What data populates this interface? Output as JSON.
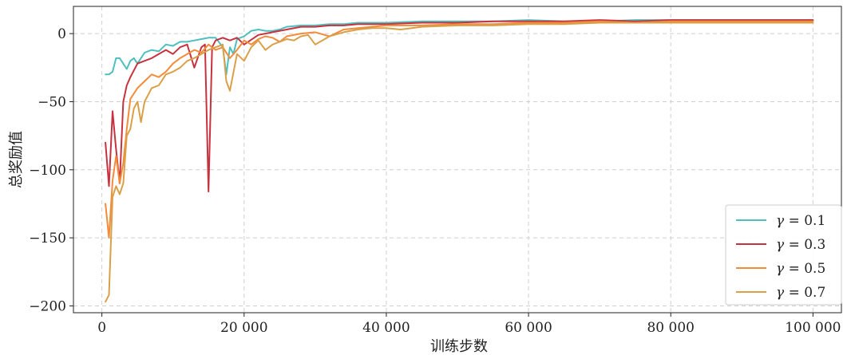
{
  "chart_data": {
    "type": "line",
    "title": "",
    "xlabel": "训练步数",
    "ylabel": "总奖励值",
    "xlim": [
      -4000,
      104000
    ],
    "ylim": [
      -205,
      20
    ],
    "xticks": [
      0,
      20000,
      40000,
      60000,
      80000,
      100000
    ],
    "xtick_labels": [
      "0",
      "20 000",
      "40 000",
      "60 000",
      "80 000",
      "100 000"
    ],
    "yticks": [
      0,
      -50,
      -100,
      -150,
      -200
    ],
    "ytick_labels": [
      "0",
      "−50",
      "−100",
      "−150",
      "−200"
    ],
    "grid": true,
    "legend_position": "bottom-right",
    "series": [
      {
        "name": "γ = 0.1",
        "legend_prefix": "γ",
        "legend_value": "0.1",
        "color": "#4dbfbf",
        "x": [
          500,
          1000,
          1500,
          2000,
          2500,
          3000,
          3500,
          4000,
          4500,
          5000,
          6000,
          7000,
          8000,
          9000,
          10000,
          11000,
          12000,
          13000,
          14000,
          15000,
          16000,
          17000,
          17500,
          18000,
          18500,
          19000,
          20000,
          21000,
          22000,
          23000,
          24000,
          25000,
          26000,
          28000,
          30000,
          32000,
          34000,
          36000,
          40000,
          45000,
          50000,
          55000,
          60000,
          65000,
          70000,
          75000,
          80000,
          85000,
          90000,
          95000,
          100000
        ],
        "y": [
          -30,
          -30,
          -28,
          -18,
          -18,
          -22,
          -26,
          -20,
          -18,
          -22,
          -14,
          -12,
          -13,
          -8,
          -9,
          -6,
          -6,
          -5,
          -4,
          -3,
          -3,
          -10,
          -30,
          -10,
          -15,
          -4,
          -2,
          2,
          3,
          2,
          2,
          3,
          5,
          6,
          6,
          7,
          7,
          8,
          8,
          9,
          9,
          9,
          10,
          9,
          9,
          10,
          10,
          10,
          10,
          10,
          10
        ]
      },
      {
        "name": "γ = 0.3",
        "legend_prefix": "γ",
        "legend_value": "0.3",
        "color": "#c8323f",
        "x": [
          500,
          1000,
          1500,
          2000,
          2500,
          3000,
          3500,
          4000,
          5000,
          6000,
          7000,
          8000,
          9000,
          10000,
          11000,
          12000,
          13000,
          14000,
          14500,
          15000,
          15500,
          16000,
          17000,
          18000,
          19000,
          20000,
          22000,
          24000,
          26000,
          28000,
          30000,
          32000,
          34000,
          36000,
          40000,
          45000,
          50000,
          55000,
          60000,
          65000,
          70000,
          75000,
          80000,
          85000,
          90000,
          95000,
          100000
        ],
        "y": [
          -80,
          -112,
          -57,
          -85,
          -110,
          -50,
          -38,
          -32,
          -22,
          -20,
          -18,
          -15,
          -12,
          -15,
          -10,
          -8,
          -25,
          -10,
          -8,
          -116,
          -10,
          -5,
          -3,
          -5,
          -3,
          -8,
          -1,
          1,
          3,
          5,
          5,
          6,
          6,
          7,
          7,
          8,
          8,
          9,
          9,
          9,
          10,
          9,
          10,
          10,
          10,
          10,
          10
        ]
      },
      {
        "name": "γ = 0.5",
        "legend_prefix": "γ",
        "legend_value": "0.5",
        "color": "#f28c3a",
        "x": [
          500,
          1000,
          1500,
          2000,
          2500,
          3000,
          3500,
          4000,
          5000,
          6000,
          7000,
          8000,
          9000,
          10000,
          11000,
          12000,
          13000,
          14000,
          15000,
          16000,
          17000,
          18000,
          19000,
          20000,
          21000,
          22000,
          23000,
          24000,
          25000,
          26000,
          28000,
          30000,
          32000,
          34000,
          36000,
          38000,
          40000,
          45000,
          50000,
          55000,
          60000,
          65000,
          70000,
          75000,
          80000,
          85000,
          90000,
          95000,
          100000
        ],
        "y": [
          -125,
          -150,
          -108,
          -90,
          -110,
          -95,
          -70,
          -48,
          -40,
          -35,
          -30,
          -32,
          -28,
          -22,
          -18,
          -15,
          -12,
          -14,
          -8,
          -12,
          -10,
          -18,
          -12,
          -5,
          -8,
          -4,
          -2,
          -3,
          -6,
          -2,
          0,
          1,
          -2,
          3,
          4,
          5,
          6,
          6,
          7,
          7,
          8,
          8,
          9,
          8,
          9,
          9,
          9,
          9,
          9
        ]
      },
      {
        "name": "γ = 0.7",
        "legend_prefix": "γ",
        "legend_value": "0.7",
        "color": "#d9a048",
        "x": [
          500,
          1000,
          1500,
          2000,
          2500,
          3000,
          3500,
          4000,
          4500,
          5000,
          5500,
          6000,
          7000,
          8000,
          9000,
          10000,
          11000,
          12000,
          13000,
          14000,
          15000,
          16000,
          17000,
          17500,
          18000,
          19000,
          20000,
          21000,
          22000,
          23000,
          24000,
          25000,
          26000,
          27000,
          28000,
          29000,
          30000,
          31000,
          32000,
          34000,
          36000,
          38000,
          40000,
          42000,
          45000,
          50000,
          55000,
          60000,
          65000,
          70000,
          75000,
          80000,
          85000,
          90000,
          95000,
          100000
        ],
        "y": [
          -197,
          -192,
          -120,
          -112,
          -118,
          -110,
          -75,
          -70,
          -55,
          -50,
          -65,
          -50,
          -40,
          -38,
          -30,
          -28,
          -25,
          -20,
          -18,
          -15,
          -12,
          -10,
          -8,
          -35,
          -42,
          -15,
          -20,
          -10,
          -5,
          -12,
          -8,
          -6,
          -4,
          -5,
          -2,
          -1,
          -8,
          -5,
          -2,
          1,
          3,
          4,
          4,
          3,
          5,
          6,
          6,
          7,
          7,
          8,
          8,
          8,
          8,
          8,
          8,
          8
        ]
      }
    ]
  }
}
